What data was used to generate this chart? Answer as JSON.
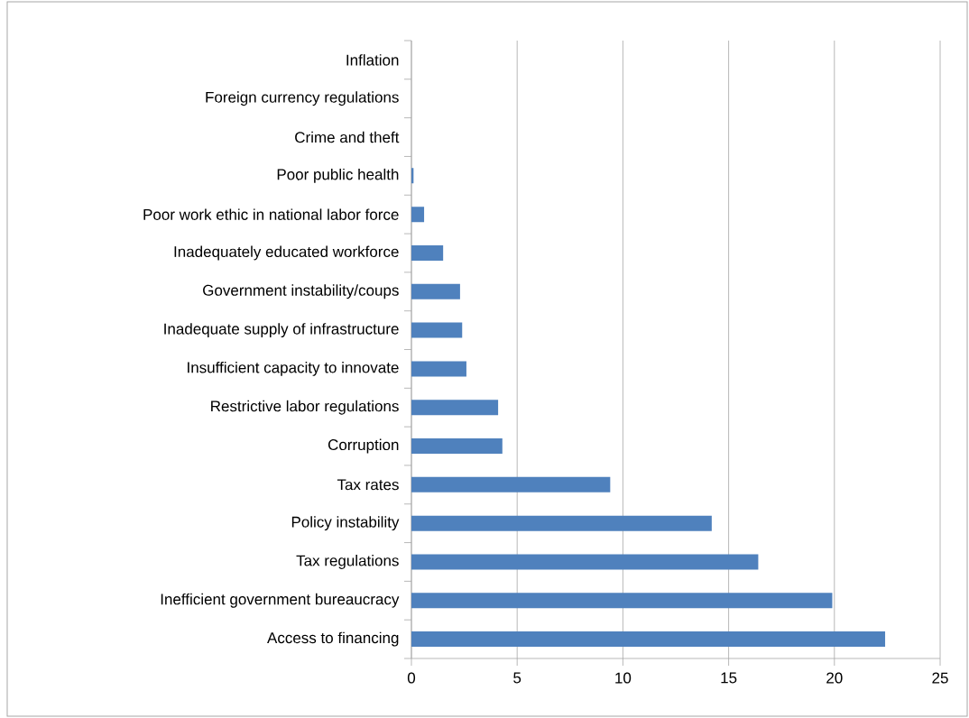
{
  "chart_data": {
    "type": "bar",
    "orientation": "horizontal",
    "categories": [
      "Inflation",
      "Foreign currency regulations",
      "Crime and theft",
      "Poor public health",
      "Poor work ethic in national labor force",
      "Inadequately educated workforce",
      "Government instability/coups",
      "Inadequate supply of infrastructure",
      "Insufficient capacity to innovate",
      "Restrictive labor regulations",
      "Corruption",
      "Tax rates",
      "Policy instability",
      "Tax regulations",
      "Inefficient government bureaucracy",
      "Access to financing"
    ],
    "values": [
      0,
      0,
      0,
      0.1,
      0.6,
      1.5,
      2.3,
      2.4,
      2.6,
      4.1,
      4.3,
      9.4,
      14.2,
      16.4,
      19.9,
      22.4
    ],
    "color": "#4f81bd",
    "xlim": [
      0,
      25
    ],
    "xticks": [
      0,
      5,
      10,
      15,
      20,
      25
    ],
    "grid": "x"
  }
}
